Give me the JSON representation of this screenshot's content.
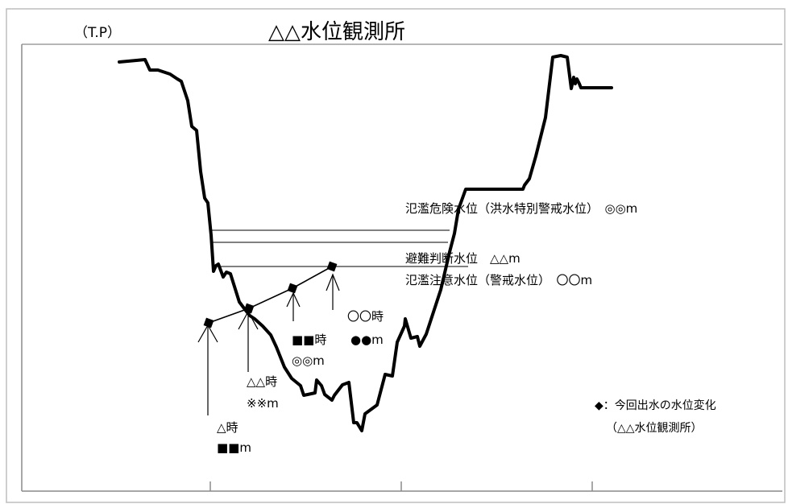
{
  "header": {
    "unit_label": "（T.P）",
    "title": "△△水位観測所"
  },
  "water_levels": {
    "danger": "氾濫危険水位（洪水特別警戒水位）　◎◎m",
    "evacuation": "避難判断水位　△△m",
    "caution": "氾濫注意水位（警戒水位）　〇〇m"
  },
  "observations": [
    {
      "time": "△時",
      "level": "■■m"
    },
    {
      "time": "△△時",
      "level": "※※m"
    },
    {
      "time": "■■時",
      "level": "◎◎m"
    },
    {
      "time": "〇〇時",
      "level": "●●m"
    }
  ],
  "legend": {
    "marker_text": "◆：今回出水の水位変化",
    "station_text": "（△△水位観測所）"
  }
}
